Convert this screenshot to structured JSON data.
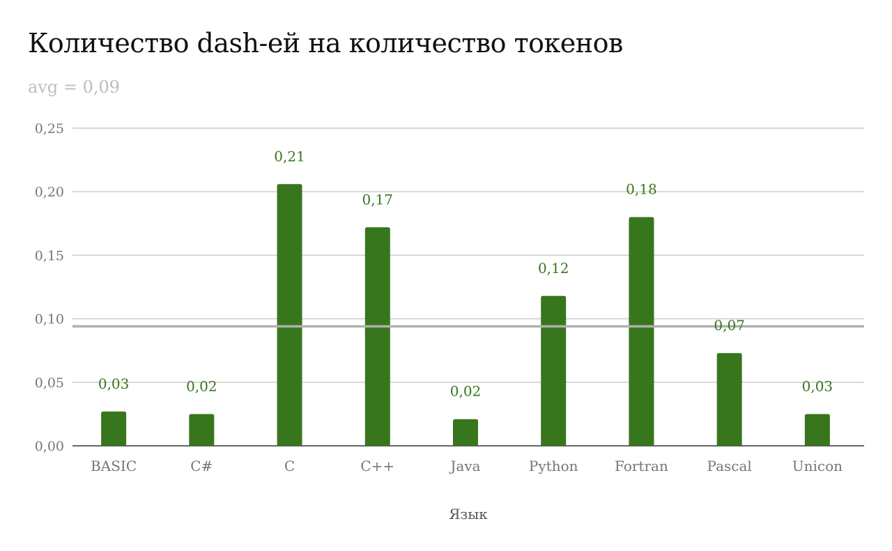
{
  "chart_data": {
    "type": "bar",
    "title": "Количество dash-ей на количество токенов",
    "subtitle": "avg = 0,09",
    "xlabel": "Язык",
    "ylabel": "",
    "categories": [
      "BASIC",
      "C#",
      "C",
      "C++",
      "Java",
      "Python",
      "Fortran",
      "Pascal",
      "Unicon"
    ],
    "values": [
      0.027,
      0.025,
      0.206,
      0.172,
      0.021,
      0.118,
      0.18,
      0.073,
      0.025
    ],
    "value_labels": [
      "0,03",
      "0,02",
      "0,21",
      "0,17",
      "0,02",
      "0,12",
      "0,18",
      "0,07",
      "0,03"
    ],
    "ylim": [
      0,
      0.25
    ],
    "yticks": [
      0,
      0.05,
      0.1,
      0.15,
      0.2,
      0.25
    ],
    "ytick_labels": [
      "0,00",
      "0,05",
      "0,10",
      "0,15",
      "0,20",
      "0,25"
    ],
    "average_line": 0.094,
    "grid": true,
    "legend": "none",
    "colors": {
      "bar": "#38761d",
      "data_label": "#38761d",
      "gridline": "#cccccc",
      "baseline": "#333333",
      "average_line": "#b0b0b0"
    }
  }
}
